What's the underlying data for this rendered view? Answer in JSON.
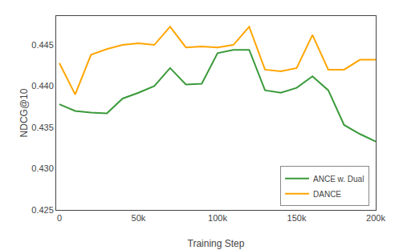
{
  "chart_data": {
    "type": "line",
    "x_label": "Training Step",
    "y_label": "NDCG@10",
    "series": [
      {
        "name": "ANCE w. Dual",
        "color": "#3a9a3a",
        "x": [
          0,
          10000,
          20000,
          30000,
          40000,
          50000,
          60000,
          70000,
          80000,
          90000,
          100000,
          110000,
          120000,
          130000,
          140000,
          150000,
          160000,
          170000,
          180000,
          190000,
          200000
        ],
        "values": [
          0.4378,
          0.437,
          0.4368,
          0.4367,
          0.4385,
          0.4392,
          0.44,
          0.4422,
          0.4402,
          0.4403,
          0.444,
          0.4444,
          0.4444,
          0.4395,
          0.4392,
          0.4398,
          0.4412,
          0.4395,
          0.4353,
          0.4342,
          0.4333
        ]
      },
      {
        "name": "DANCE",
        "color": "#ffa500",
        "x": [
          0,
          10000,
          20000,
          30000,
          40000,
          50000,
          60000,
          70000,
          80000,
          90000,
          100000,
          110000,
          120000,
          130000,
          140000,
          150000,
          160000,
          170000,
          180000,
          190000,
          200000
        ],
        "values": [
          0.4428,
          0.439,
          0.4438,
          0.4445,
          0.445,
          0.4452,
          0.445,
          0.4472,
          0.4447,
          0.4448,
          0.4447,
          0.445,
          0.4472,
          0.442,
          0.4418,
          0.4422,
          0.4462,
          0.442,
          0.442,
          0.4432,
          0.4432
        ]
      }
    ],
    "xlim": [
      -2000,
      200000
    ],
    "ylim": [
      0.425,
      0.4485
    ],
    "xticks": [
      0,
      {
        "value": 50000,
        "label": "50k"
      },
      {
        "value": 100000,
        "label": "100k"
      },
      {
        "value": 150000,
        "label": "150k"
      },
      {
        "value": 200000,
        "label": "200k"
      }
    ],
    "yticks": [
      0.425,
      {
        "value": 0.43,
        "label": "0.430"
      },
      0.435,
      {
        "value": 0.44,
        "label": "0.440"
      },
      0.445
    ],
    "legend": "lower right",
    "grid": false
  }
}
